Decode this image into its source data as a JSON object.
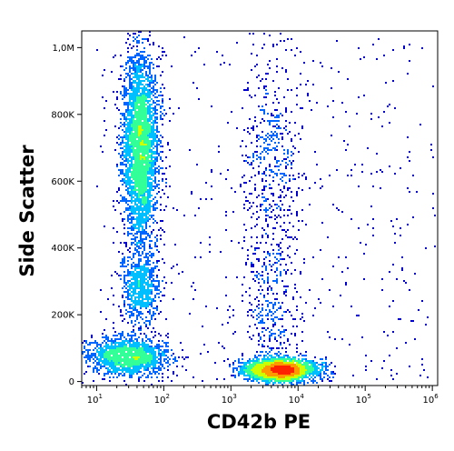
{
  "chart_data": {
    "type": "scatter",
    "subtype": "flow-cytometry-density-dot-plot",
    "title": "",
    "xlabel": "CD42b PE",
    "ylabel": "Side Scatter",
    "x_scale": "log",
    "x_range": [
      6,
      1200000
    ],
    "y_range": [
      -12000,
      1050000
    ],
    "x_ticks": [
      {
        "value": 10,
        "base": "10",
        "exp": "1"
      },
      {
        "value": 100,
        "base": "10",
        "exp": "2"
      },
      {
        "value": 1000,
        "base": "10",
        "exp": "3"
      },
      {
        "value": 10000,
        "base": "10",
        "exp": "4"
      },
      {
        "value": 100000,
        "base": "10",
        "exp": "5"
      },
      {
        "value": 1000000,
        "base": "10",
        "exp": "6"
      }
    ],
    "y_ticks": [
      {
        "value": 0,
        "label": "0"
      },
      {
        "value": 200000,
        "label": "200K"
      },
      {
        "value": 400000,
        "label": "400K"
      },
      {
        "value": 600000,
        "label": "600K"
      },
      {
        "value": 800000,
        "label": "800K"
      },
      {
        "value": 1000000,
        "label": "1,0M"
      }
    ],
    "populations": [
      {
        "x_center": 45,
        "x_log_sd": 0.13,
        "y_center": 700000,
        "y_sd": 140000,
        "count": 3400
      },
      {
        "x_center": 45,
        "x_log_sd": 0.15,
        "y_center": 280000,
        "y_sd": 55000,
        "count": 700
      },
      {
        "x_center": 30,
        "x_log_sd": 0.3,
        "y_center": 75000,
        "y_sd": 28000,
        "count": 1500
      },
      {
        "x_center": 5500,
        "x_log_sd": 0.27,
        "y_center": 35000,
        "y_sd": 17000,
        "count": 2600
      },
      {
        "x_center": 4000,
        "x_log_sd": 0.22,
        "y_center": 640000,
        "y_sd": 160000,
        "count": 500
      },
      {
        "x_center": 4000,
        "x_log_sd": 0.2,
        "y_center": 200000,
        "y_sd": 130000,
        "count": 350
      }
    ],
    "scatter_background_count": 500,
    "density_colors": [
      "#0000cc",
      "#0066ff",
      "#00bfff",
      "#33ff99",
      "#ccff00",
      "#ff9900",
      "#ff2200"
    ],
    "grid": false,
    "legend": "none"
  }
}
